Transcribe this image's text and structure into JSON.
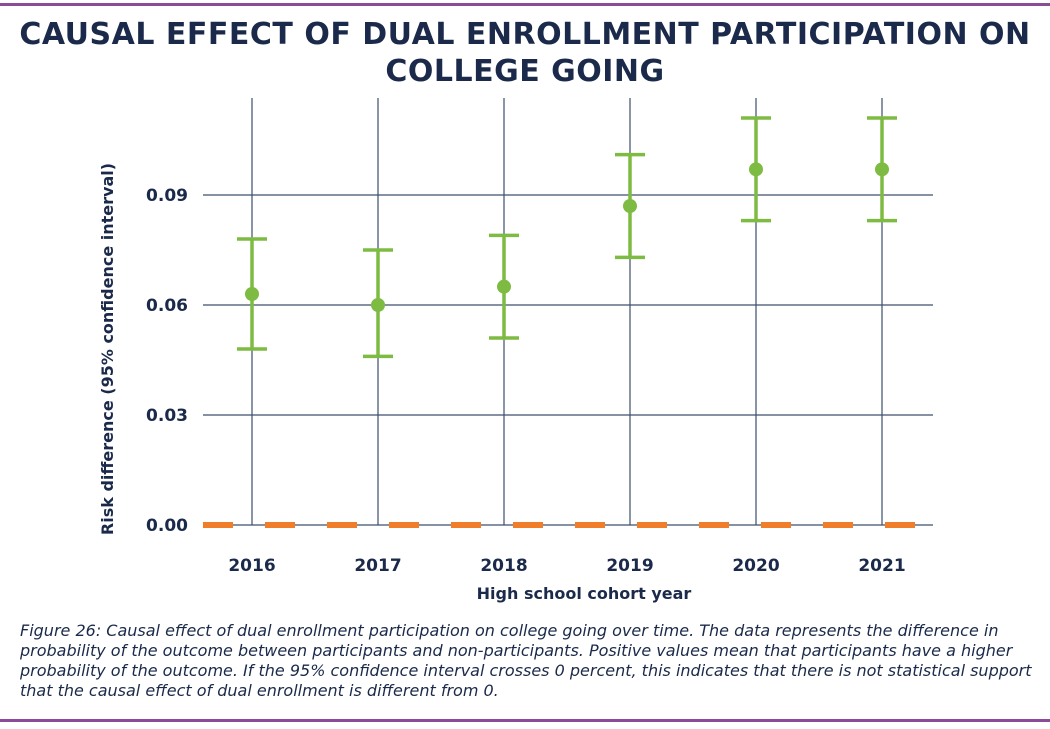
{
  "chart_data": {
    "type": "scatter",
    "title": "CAUSAL EFFECT OF DUAL ENROLLMENT PARTICIPATION ON COLLEGE GOING",
    "xlabel": "High school cohort year",
    "ylabel": "Risk difference (95% confidence interval)",
    "categories": [
      "2016",
      "2017",
      "2018",
      "2019",
      "2020",
      "2021"
    ],
    "series": [
      {
        "name": "Risk difference",
        "values": [
          0.063,
          0.06,
          0.065,
          0.087,
          0.097,
          0.097
        ],
        "ci_lower": [
          0.048,
          0.046,
          0.051,
          0.073,
          0.083,
          0.083
        ],
        "ci_upper": [
          0.078,
          0.075,
          0.079,
          0.101,
          0.111,
          0.111
        ]
      }
    ],
    "reference_line": {
      "value": 0.0,
      "style": "dashed"
    },
    "yticks": [
      "0.00",
      "0.03",
      "0.06",
      "0.09"
    ],
    "ylim": [
      0.0,
      0.117
    ],
    "grid": true,
    "colors": {
      "points": "#7dbb42",
      "reference": "#f07d2a",
      "grid": "#3d4f6e",
      "text": "#1b2a4a"
    }
  },
  "caption": "Figure 26: Causal effect of dual enrollment participation on college going over time. The data represents the difference in probability of the outcome between participants and non-participants. Positive values mean that participants have a higher probability of the outcome. If the 95% confidence interval crosses 0 percent, this indicates that there is not statistical support that the causal effect of dual enrollment is different from 0."
}
